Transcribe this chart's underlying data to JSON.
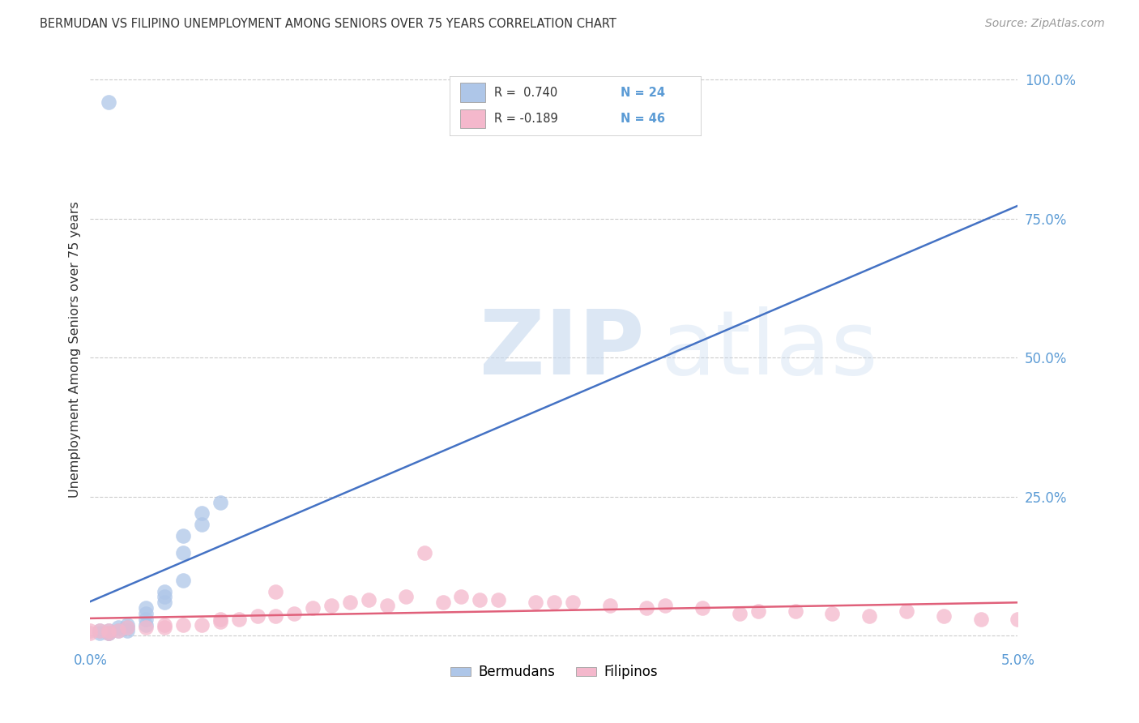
{
  "title": "BERMUDAN VS FILIPINO UNEMPLOYMENT AMONG SENIORS OVER 75 YEARS CORRELATION CHART",
  "source": "Source: ZipAtlas.com",
  "ylabel": "Unemployment Among Seniors over 75 years",
  "xlim": [
    0.0,
    0.05
  ],
  "ylim": [
    -0.02,
    1.05
  ],
  "yticks": [
    0.0,
    0.25,
    0.5,
    0.75,
    1.0
  ],
  "ytick_labels": [
    "",
    "25.0%",
    "50.0%",
    "75.0%",
    "100.0%"
  ],
  "xtick_labels": [
    "0.0%",
    "5.0%"
  ],
  "xtick_vals": [
    0.0,
    0.05
  ],
  "bermudan_color": "#aec6e8",
  "filipino_color": "#f4b8cc",
  "bermudan_line_color": "#4472c4",
  "filipino_line_color": "#e0607a",
  "background_color": "#ffffff",
  "grid_color": "#cccccc",
  "right_tick_color": "#5b9bd5",
  "bottom_tick_color": "#5b9bd5",
  "bermudan_x": [
    0.001,
    0.0005,
    0.0005,
    0.001,
    0.001,
    0.0015,
    0.0015,
    0.002,
    0.002,
    0.002,
    0.003,
    0.003,
    0.003,
    0.003,
    0.004,
    0.004,
    0.004,
    0.005,
    0.005,
    0.005,
    0.006,
    0.006,
    0.007,
    0.001
  ],
  "bermudan_y": [
    0.96,
    0.005,
    0.01,
    0.005,
    0.01,
    0.01,
    0.015,
    0.01,
    0.015,
    0.02,
    0.02,
    0.03,
    0.04,
    0.05,
    0.06,
    0.07,
    0.08,
    0.1,
    0.15,
    0.18,
    0.2,
    0.22,
    0.24,
    0.005
  ],
  "filipino_x": [
    0.0,
    0.0,
    0.0005,
    0.001,
    0.001,
    0.0015,
    0.002,
    0.003,
    0.004,
    0.004,
    0.005,
    0.006,
    0.007,
    0.007,
    0.008,
    0.009,
    0.01,
    0.01,
    0.011,
    0.012,
    0.013,
    0.014,
    0.015,
    0.016,
    0.017,
    0.018,
    0.019,
    0.02,
    0.021,
    0.022,
    0.024,
    0.025,
    0.026,
    0.028,
    0.03,
    0.031,
    0.033,
    0.035,
    0.036,
    0.038,
    0.04,
    0.042,
    0.044,
    0.046,
    0.048,
    0.05
  ],
  "filipino_y": [
    0.005,
    0.01,
    0.01,
    0.005,
    0.01,
    0.01,
    0.015,
    0.015,
    0.015,
    0.02,
    0.02,
    0.02,
    0.025,
    0.03,
    0.03,
    0.035,
    0.035,
    0.08,
    0.04,
    0.05,
    0.055,
    0.06,
    0.065,
    0.055,
    0.07,
    0.15,
    0.06,
    0.07,
    0.065,
    0.065,
    0.06,
    0.06,
    0.06,
    0.055,
    0.05,
    0.055,
    0.05,
    0.04,
    0.045,
    0.045,
    0.04,
    0.035,
    0.045,
    0.035,
    0.03,
    0.03
  ],
  "legend_r_berm": "R =  0.740",
  "legend_n_berm": "N = 24",
  "legend_r_filip": "R = -0.189",
  "legend_n_filip": "N = 46"
}
